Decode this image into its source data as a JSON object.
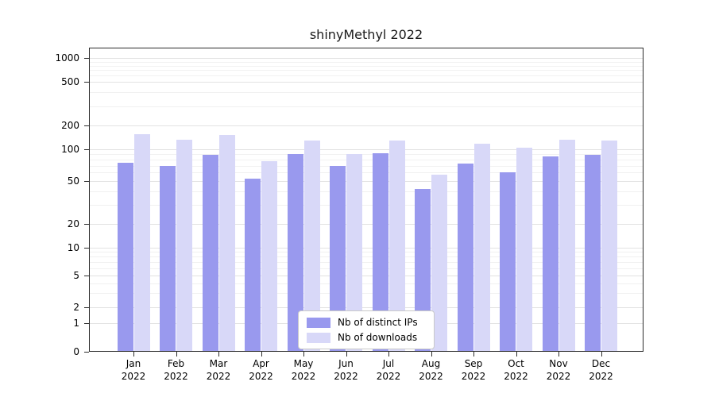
{
  "chart_data": {
    "type": "bar",
    "title": "shinyMethyl 2022",
    "categories": [
      "Jan",
      "Feb",
      "Mar",
      "Apr",
      "May",
      "Jun",
      "Jul",
      "Aug",
      "Sep",
      "Oct",
      "Nov",
      "Dec"
    ],
    "year": "2022",
    "series": [
      {
        "name": "Nb of distinct IPs",
        "color": "#9999ee",
        "values": [
          75,
          70,
          88,
          53,
          90,
          70,
          92,
          42,
          73,
          61,
          85,
          88
        ]
      },
      {
        "name": "Nb of downloads",
        "color": "#d8d8f8",
        "values": [
          155,
          132,
          150,
          77,
          130,
          90,
          130,
          57,
          117,
          104,
          132,
          128
        ]
      }
    ],
    "yticks": [
      0,
      1,
      2,
      5,
      10,
      20,
      50,
      100,
      200,
      500,
      1000
    ],
    "yscale": "log",
    "ylim": [
      0,
      1000
    ],
    "grid": true,
    "legend_position": "bottom-center"
  }
}
